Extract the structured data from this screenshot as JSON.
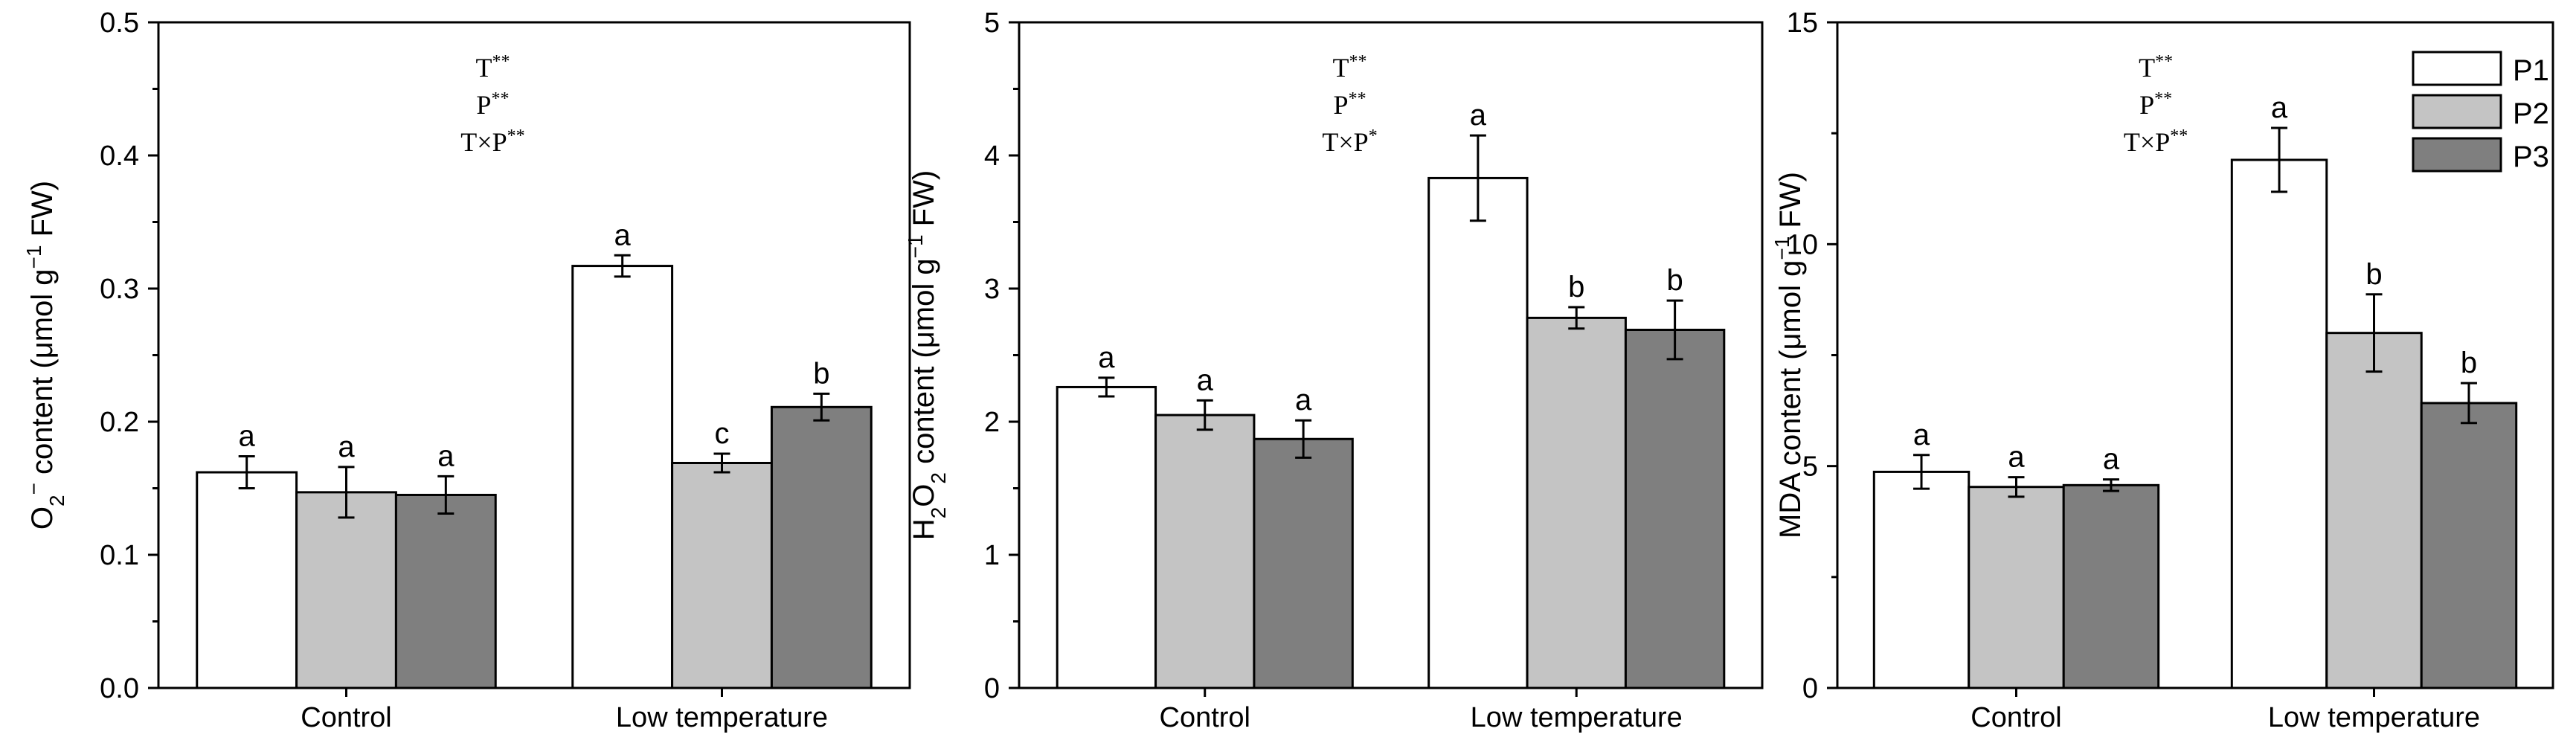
{
  "colors": {
    "P1": "#ffffff",
    "P2": "#c4c4c4",
    "P3": "#7f7f7f",
    "stroke": "#000000"
  },
  "chart_data": [
    {
      "type": "bar",
      "title": "",
      "ylabel_parts": [
        "O",
        "2",
        "−",
        " content (μmol g",
        "−1",
        " FW)"
      ],
      "xlabel": "",
      "categories": [
        "Control",
        "Low temperature"
      ],
      "ylim": [
        0,
        0.5
      ],
      "yticks": [
        "0.0",
        "0.1",
        "0.2",
        "0.3",
        "0.4",
        "0.5"
      ],
      "series": [
        {
          "name": "P1",
          "values": [
            0.162,
            0.317
          ],
          "errors": [
            0.012,
            0.008
          ],
          "letters": [
            "a",
            "a"
          ]
        },
        {
          "name": "P2",
          "values": [
            0.147,
            0.169
          ],
          "errors": [
            0.019,
            0.007
          ],
          "letters": [
            "a",
            "c"
          ]
        },
        {
          "name": "P3",
          "values": [
            0.145,
            0.211
          ],
          "errors": [
            0.014,
            0.01
          ],
          "letters": [
            "a",
            "b"
          ]
        }
      ],
      "annotations": [
        {
          "base": "T",
          "sup": "**"
        },
        {
          "base": "P",
          "sup": "**"
        },
        {
          "base": "T×P",
          "sup": "**"
        }
      ]
    },
    {
      "type": "bar",
      "title": "",
      "ylabel_parts": [
        "H",
        "2",
        "O",
        "2",
        " content (μmol g",
        "−1",
        " FW)"
      ],
      "xlabel": "",
      "categories": [
        "Control",
        "Low temperature"
      ],
      "ylim": [
        0,
        5
      ],
      "yticks": [
        "0",
        "1",
        "2",
        "3",
        "4",
        "5"
      ],
      "series": [
        {
          "name": "P1",
          "values": [
            2.26,
            3.83
          ],
          "errors": [
            0.07,
            0.32
          ],
          "letters": [
            "a",
            "a"
          ]
        },
        {
          "name": "P2",
          "values": [
            2.05,
            2.78
          ],
          "errors": [
            0.11,
            0.08
          ],
          "letters": [
            "a",
            "b"
          ]
        },
        {
          "name": "P3",
          "values": [
            1.87,
            2.69
          ],
          "errors": [
            0.14,
            0.22
          ],
          "letters": [
            "a",
            "b"
          ]
        }
      ],
      "annotations": [
        {
          "base": "T",
          "sup": "**"
        },
        {
          "base": "P",
          "sup": "**"
        },
        {
          "base": "T×P",
          "sup": "*"
        }
      ]
    },
    {
      "type": "bar",
      "title": "",
      "ylabel_parts": [
        "MDA content (μmol g",
        "−1",
        " FW)"
      ],
      "xlabel": "",
      "categories": [
        "Control",
        "Low temperature"
      ],
      "ylim": [
        0,
        15
      ],
      "yticks": [
        "0",
        "5",
        "10",
        "15"
      ],
      "series": [
        {
          "name": "P1",
          "values": [
            4.87,
            11.9
          ],
          "errors": [
            0.38,
            0.72
          ],
          "letters": [
            "a",
            "a"
          ]
        },
        {
          "name": "P2",
          "values": [
            4.53,
            8.0
          ],
          "errors": [
            0.22,
            0.87
          ],
          "letters": [
            "a",
            "b"
          ]
        },
        {
          "name": "P3",
          "values": [
            4.57,
            6.42
          ],
          "errors": [
            0.13,
            0.45
          ],
          "letters": [
            "a",
            "b"
          ]
        }
      ],
      "annotations": [
        {
          "base": "T",
          "sup": "**"
        },
        {
          "base": "P",
          "sup": "**"
        },
        {
          "base": "T×P",
          "sup": "**"
        }
      ],
      "legend": {
        "position": "top-right",
        "entries": [
          "P1",
          "P2",
          "P3"
        ]
      }
    }
  ]
}
